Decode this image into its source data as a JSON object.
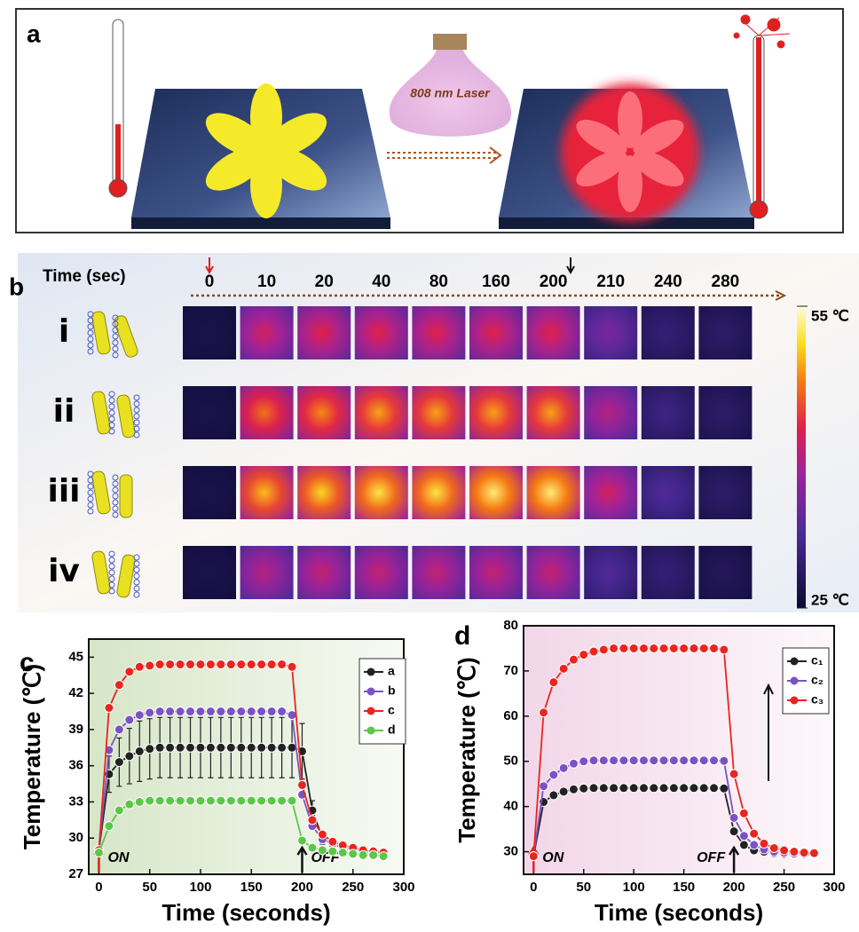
{
  "panel_a": {
    "label": "a",
    "laser_label": "808 nm Laser"
  },
  "panel_b": {
    "label": "b",
    "time_header": "Time (sec)",
    "times": [
      0,
      10,
      20,
      40,
      80,
      160,
      200,
      210,
      240,
      280
    ],
    "rows": [
      "i",
      "ii",
      "iii",
      "iv"
    ],
    "temperatures": [
      [
        27,
        42,
        43,
        43,
        43,
        43,
        43,
        36,
        30,
        29
      ],
      [
        27,
        47,
        48,
        49,
        49,
        49,
        49,
        40,
        31,
        29
      ],
      [
        27,
        50,
        51,
        52,
        52,
        53,
        53,
        42,
        33,
        29
      ],
      [
        27,
        40,
        41,
        41,
        41,
        41,
        41,
        33,
        30,
        28
      ]
    ],
    "colorbar": {
      "range": [
        25,
        55
      ],
      "ticks": [
        {
          "value": 55,
          "label": "55 ℃"
        },
        {
          "value": 25,
          "label": "25 ℃"
        }
      ]
    }
  },
  "chart_data": [
    {
      "type": "line",
      "panel_label": "c",
      "x_label": "Time (seconds)",
      "y_label": "Temperature (℃)",
      "on_label": "ON",
      "off_label": "OFF",
      "legend": "upper right",
      "x": [
        0,
        10,
        20,
        30,
        40,
        50,
        60,
        70,
        80,
        90,
        100,
        110,
        120,
        130,
        140,
        150,
        160,
        170,
        180,
        190,
        200,
        210,
        220,
        230,
        240,
        250,
        260,
        270,
        280
      ],
      "xlim": [
        -10,
        300
      ],
      "xticks": [
        0,
        50,
        100,
        150,
        200,
        250,
        300
      ],
      "ylim": [
        27,
        46.5
      ],
      "yticks": [
        27,
        30,
        33,
        36,
        39,
        42,
        45
      ],
      "series": [
        {
          "name": "a",
          "color": "#222222",
          "values": [
            29,
            35.3,
            36.3,
            36.8,
            37.2,
            37.4,
            37.5,
            37.5,
            37.5,
            37.5,
            37.5,
            37.5,
            37.5,
            37.5,
            37.5,
            37.5,
            37.5,
            37.5,
            37.5,
            37.5,
            37.2,
            32.3,
            30,
            29.5,
            29.2,
            29,
            28.9,
            28.8,
            28.7
          ],
          "errors": [
            0.3,
            1.5,
            2,
            2.3,
            2.5,
            2.5,
            2.5,
            2.5,
            2.5,
            2.5,
            2.5,
            2.5,
            2.5,
            2.5,
            2.5,
            2.5,
            2.5,
            2.5,
            2.5,
            2.5,
            2.3,
            0.8,
            0.5,
            0.4,
            0.3,
            0.3,
            0.3,
            0.3,
            0.3
          ]
        },
        {
          "name": "b",
          "color": "#7b52c4",
          "values": [
            29,
            37.3,
            39,
            39.8,
            40.2,
            40.4,
            40.5,
            40.5,
            40.5,
            40.5,
            40.5,
            40.5,
            40.5,
            40.5,
            40.5,
            40.5,
            40.5,
            40.5,
            40.5,
            40.2,
            33.6,
            31,
            29.9,
            29.5,
            29.2,
            29,
            28.9,
            28.8,
            28.7
          ]
        },
        {
          "name": "c",
          "color": "#e8251f",
          "values": [
            29,
            40.8,
            42.7,
            43.8,
            44.2,
            44.3,
            44.4,
            44.4,
            44.4,
            44.4,
            44.4,
            44.4,
            44.4,
            44.4,
            44.4,
            44.4,
            44.4,
            44.4,
            44.4,
            44.2,
            34.4,
            31.5,
            30.3,
            29.7,
            29.4,
            29.2,
            29,
            28.9,
            28.8
          ]
        },
        {
          "name": "d",
          "color": "#5cc64a",
          "values": [
            28.8,
            31,
            32.3,
            32.8,
            33,
            33.1,
            33.1,
            33.1,
            33.1,
            33.1,
            33.1,
            33.1,
            33.1,
            33.1,
            33.1,
            33.1,
            33.1,
            33.1,
            33.1,
            33.1,
            29.8,
            29.2,
            29,
            28.9,
            28.8,
            28.7,
            28.6,
            28.6,
            28.5
          ]
        }
      ]
    },
    {
      "type": "line",
      "panel_label": "d",
      "x_label": "Time (seconds)",
      "y_label": "Temperature (℃)",
      "on_label": "ON",
      "off_label": "OFF",
      "legend": "upper right",
      "x": [
        0,
        10,
        20,
        30,
        40,
        50,
        60,
        70,
        80,
        90,
        100,
        110,
        120,
        130,
        140,
        150,
        160,
        170,
        180,
        190,
        200,
        210,
        220,
        230,
        240,
        250,
        260,
        270,
        280
      ],
      "xlim": [
        -10,
        300
      ],
      "xticks": [
        0,
        50,
        100,
        150,
        200,
        250,
        300
      ],
      "ylim": [
        25,
        80
      ],
      "yticks": [
        30,
        40,
        50,
        60,
        70,
        80
      ],
      "series": [
        {
          "name": "c₁",
          "color": "#222222",
          "values": [
            29,
            41,
            42.5,
            43.3,
            43.8,
            44,
            44.1,
            44.1,
            44.1,
            44.1,
            44.1,
            44.1,
            44.1,
            44.1,
            44.1,
            44.1,
            44.1,
            44.1,
            44.1,
            44,
            34.5,
            31.5,
            30.3,
            30,
            29.7,
            29.5,
            29.4,
            29.3,
            29.3
          ]
        },
        {
          "name": "c₂",
          "color": "#7b52c4",
          "values": [
            29,
            44.5,
            47,
            48.5,
            49.5,
            50,
            50.2,
            50.2,
            50.2,
            50.2,
            50.2,
            50.2,
            50.2,
            50.2,
            50.2,
            50.2,
            50.2,
            50.2,
            50.2,
            50.1,
            37.5,
            33.5,
            31.5,
            30.5,
            30,
            29.8,
            29.6,
            29.5,
            29.5
          ]
        },
        {
          "name": "c₃",
          "color": "#e8251f",
          "values": [
            29,
            60.8,
            67.5,
            70.5,
            72.5,
            73.6,
            74.3,
            74.7,
            75,
            75,
            75,
            75,
            75,
            75,
            75,
            75,
            75,
            75,
            75,
            74.7,
            47.2,
            38.5,
            34,
            31.8,
            30.8,
            30.3,
            30,
            29.8,
            29.7
          ]
        }
      ]
    }
  ]
}
